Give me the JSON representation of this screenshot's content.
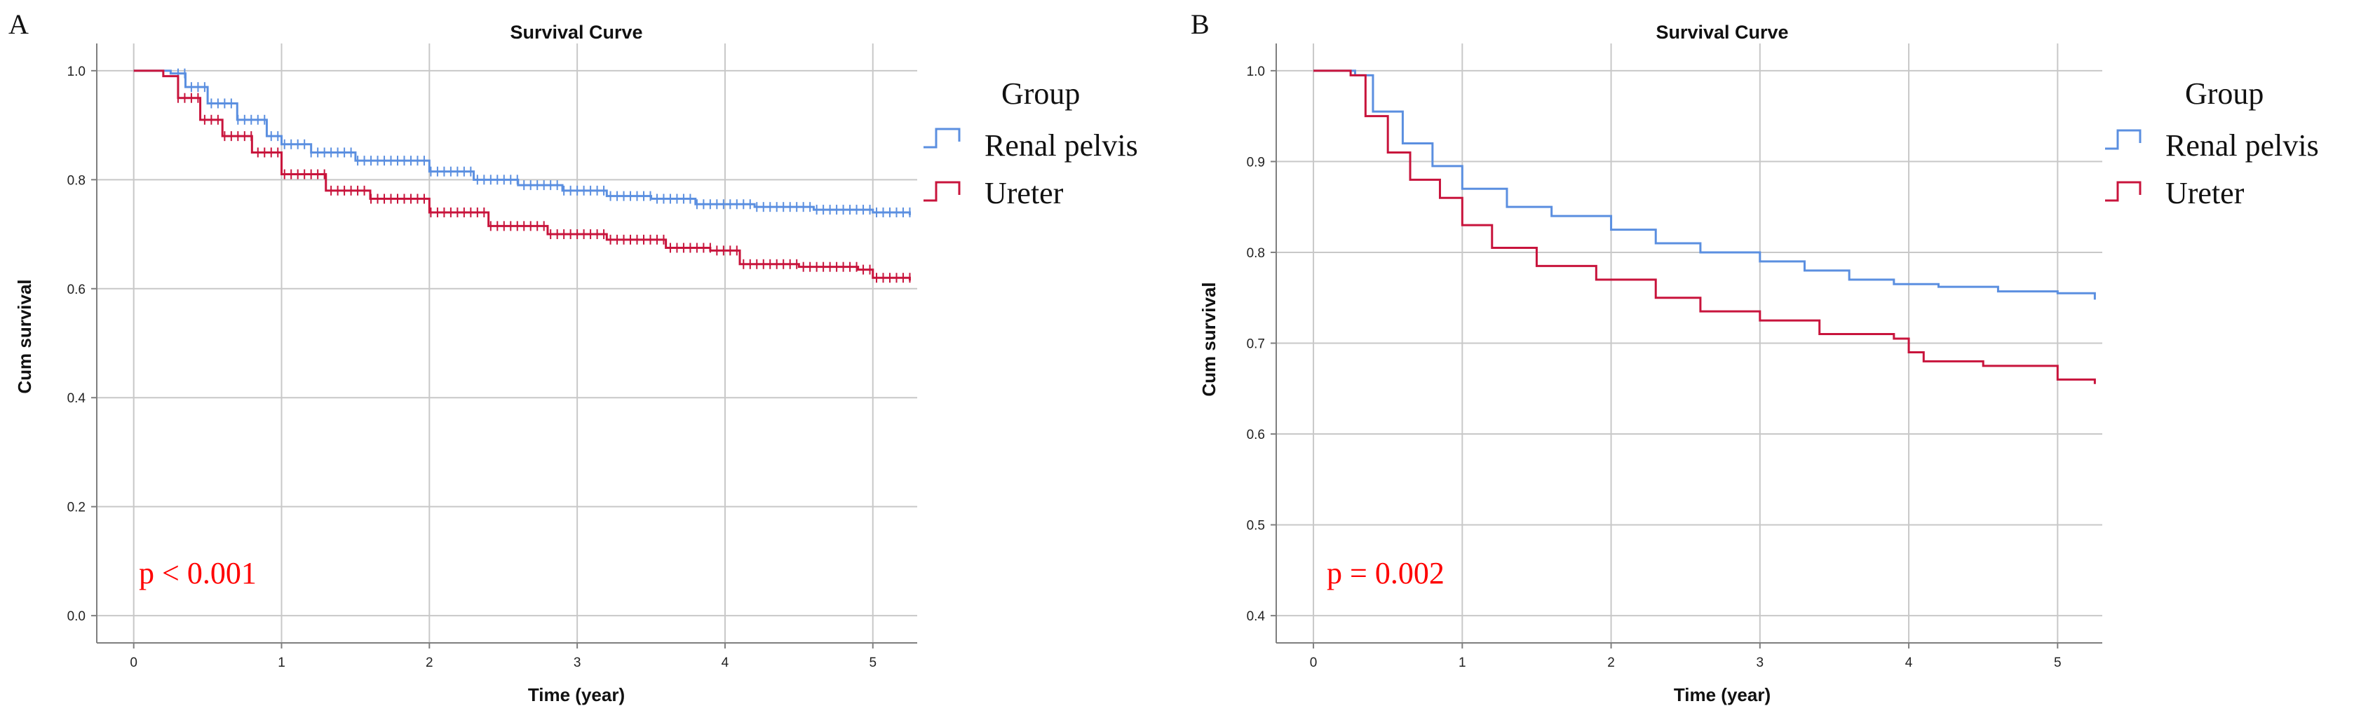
{
  "chart_data": [
    {
      "panel": "A",
      "type": "line",
      "title": "Survival Curve",
      "xlabel": "Time (year)",
      "ylabel": "Cum survival",
      "xlim": [
        -0.25,
        5.3
      ],
      "ylim": [
        -0.05,
        1.05
      ],
      "xticks": [
        0,
        1,
        2,
        3,
        4,
        5
      ],
      "yticks": [
        0.0,
        0.2,
        0.4,
        0.6,
        0.8,
        1.0
      ],
      "ytick_labels": [
        "0.0",
        "0.2",
        "0.4",
        "0.6",
        "0.8",
        "1.0"
      ],
      "grid": true,
      "censor_marks": true,
      "annotation": "p < 0.001",
      "legend": {
        "title": "Group",
        "position": "right"
      },
      "series": [
        {
          "name": "Renal pelvis",
          "color": "#5b8fe0",
          "x": [
            0,
            0.25,
            0.35,
            0.5,
            0.7,
            0.9,
            1.0,
            1.2,
            1.5,
            2.0,
            2.3,
            2.6,
            2.9,
            3.2,
            3.5,
            3.8,
            4.2,
            4.6,
            5.0,
            5.25
          ],
          "y": [
            1.0,
            0.995,
            0.97,
            0.94,
            0.91,
            0.88,
            0.865,
            0.85,
            0.835,
            0.815,
            0.8,
            0.79,
            0.78,
            0.77,
            0.765,
            0.755,
            0.75,
            0.745,
            0.74,
            0.735
          ]
        },
        {
          "name": "Ureter",
          "color": "#c8143c",
          "x": [
            0,
            0.2,
            0.3,
            0.45,
            0.6,
            0.8,
            1.0,
            1.3,
            1.6,
            2.0,
            2.4,
            2.8,
            3.2,
            3.6,
            3.9,
            4.1,
            4.5,
            4.9,
            5.0,
            5.25
          ],
          "y": [
            1.0,
            0.99,
            0.95,
            0.91,
            0.88,
            0.85,
            0.81,
            0.78,
            0.765,
            0.74,
            0.715,
            0.7,
            0.69,
            0.675,
            0.67,
            0.645,
            0.64,
            0.635,
            0.62,
            0.615
          ]
        }
      ]
    },
    {
      "panel": "B",
      "type": "line",
      "title": "Survival Curve",
      "xlabel": "Time (year)",
      "ylabel": "Cum survival",
      "xlim": [
        -0.25,
        5.3
      ],
      "ylim": [
        0.37,
        1.03
      ],
      "xticks": [
        0,
        1,
        2,
        3,
        4,
        5
      ],
      "yticks": [
        0.4,
        0.5,
        0.6,
        0.7,
        0.8,
        0.9,
        1.0
      ],
      "ytick_labels": [
        "0.4",
        "0.5",
        "0.6",
        "0.7",
        "0.8",
        "0.9",
        "1.0"
      ],
      "grid": true,
      "censor_marks": false,
      "annotation": "p = 0.002",
      "legend": {
        "title": "Group",
        "position": "right"
      },
      "series": [
        {
          "name": "Renal pelvis",
          "color": "#5b8fe0",
          "x": [
            0,
            0.28,
            0.4,
            0.6,
            0.8,
            1.0,
            1.3,
            1.6,
            2.0,
            2.3,
            2.6,
            3.0,
            3.3,
            3.6,
            3.9,
            4.2,
            4.6,
            5.0,
            5.25
          ],
          "y": [
            1.0,
            0.995,
            0.955,
            0.92,
            0.895,
            0.87,
            0.85,
            0.84,
            0.825,
            0.81,
            0.8,
            0.79,
            0.78,
            0.77,
            0.765,
            0.762,
            0.757,
            0.755,
            0.748
          ]
        },
        {
          "name": "Ureter",
          "color": "#c8143c",
          "x": [
            0,
            0.25,
            0.35,
            0.5,
            0.65,
            0.85,
            1.0,
            1.2,
            1.5,
            1.9,
            2.3,
            2.6,
            3.0,
            3.4,
            3.9,
            4.0,
            4.1,
            4.5,
            5.0,
            5.25
          ],
          "y": [
            1.0,
            0.995,
            0.95,
            0.91,
            0.88,
            0.86,
            0.83,
            0.805,
            0.785,
            0.77,
            0.75,
            0.735,
            0.725,
            0.71,
            0.705,
            0.69,
            0.68,
            0.675,
            0.66,
            0.655
          ]
        }
      ]
    }
  ],
  "pvalue_color": "#ff0000"
}
